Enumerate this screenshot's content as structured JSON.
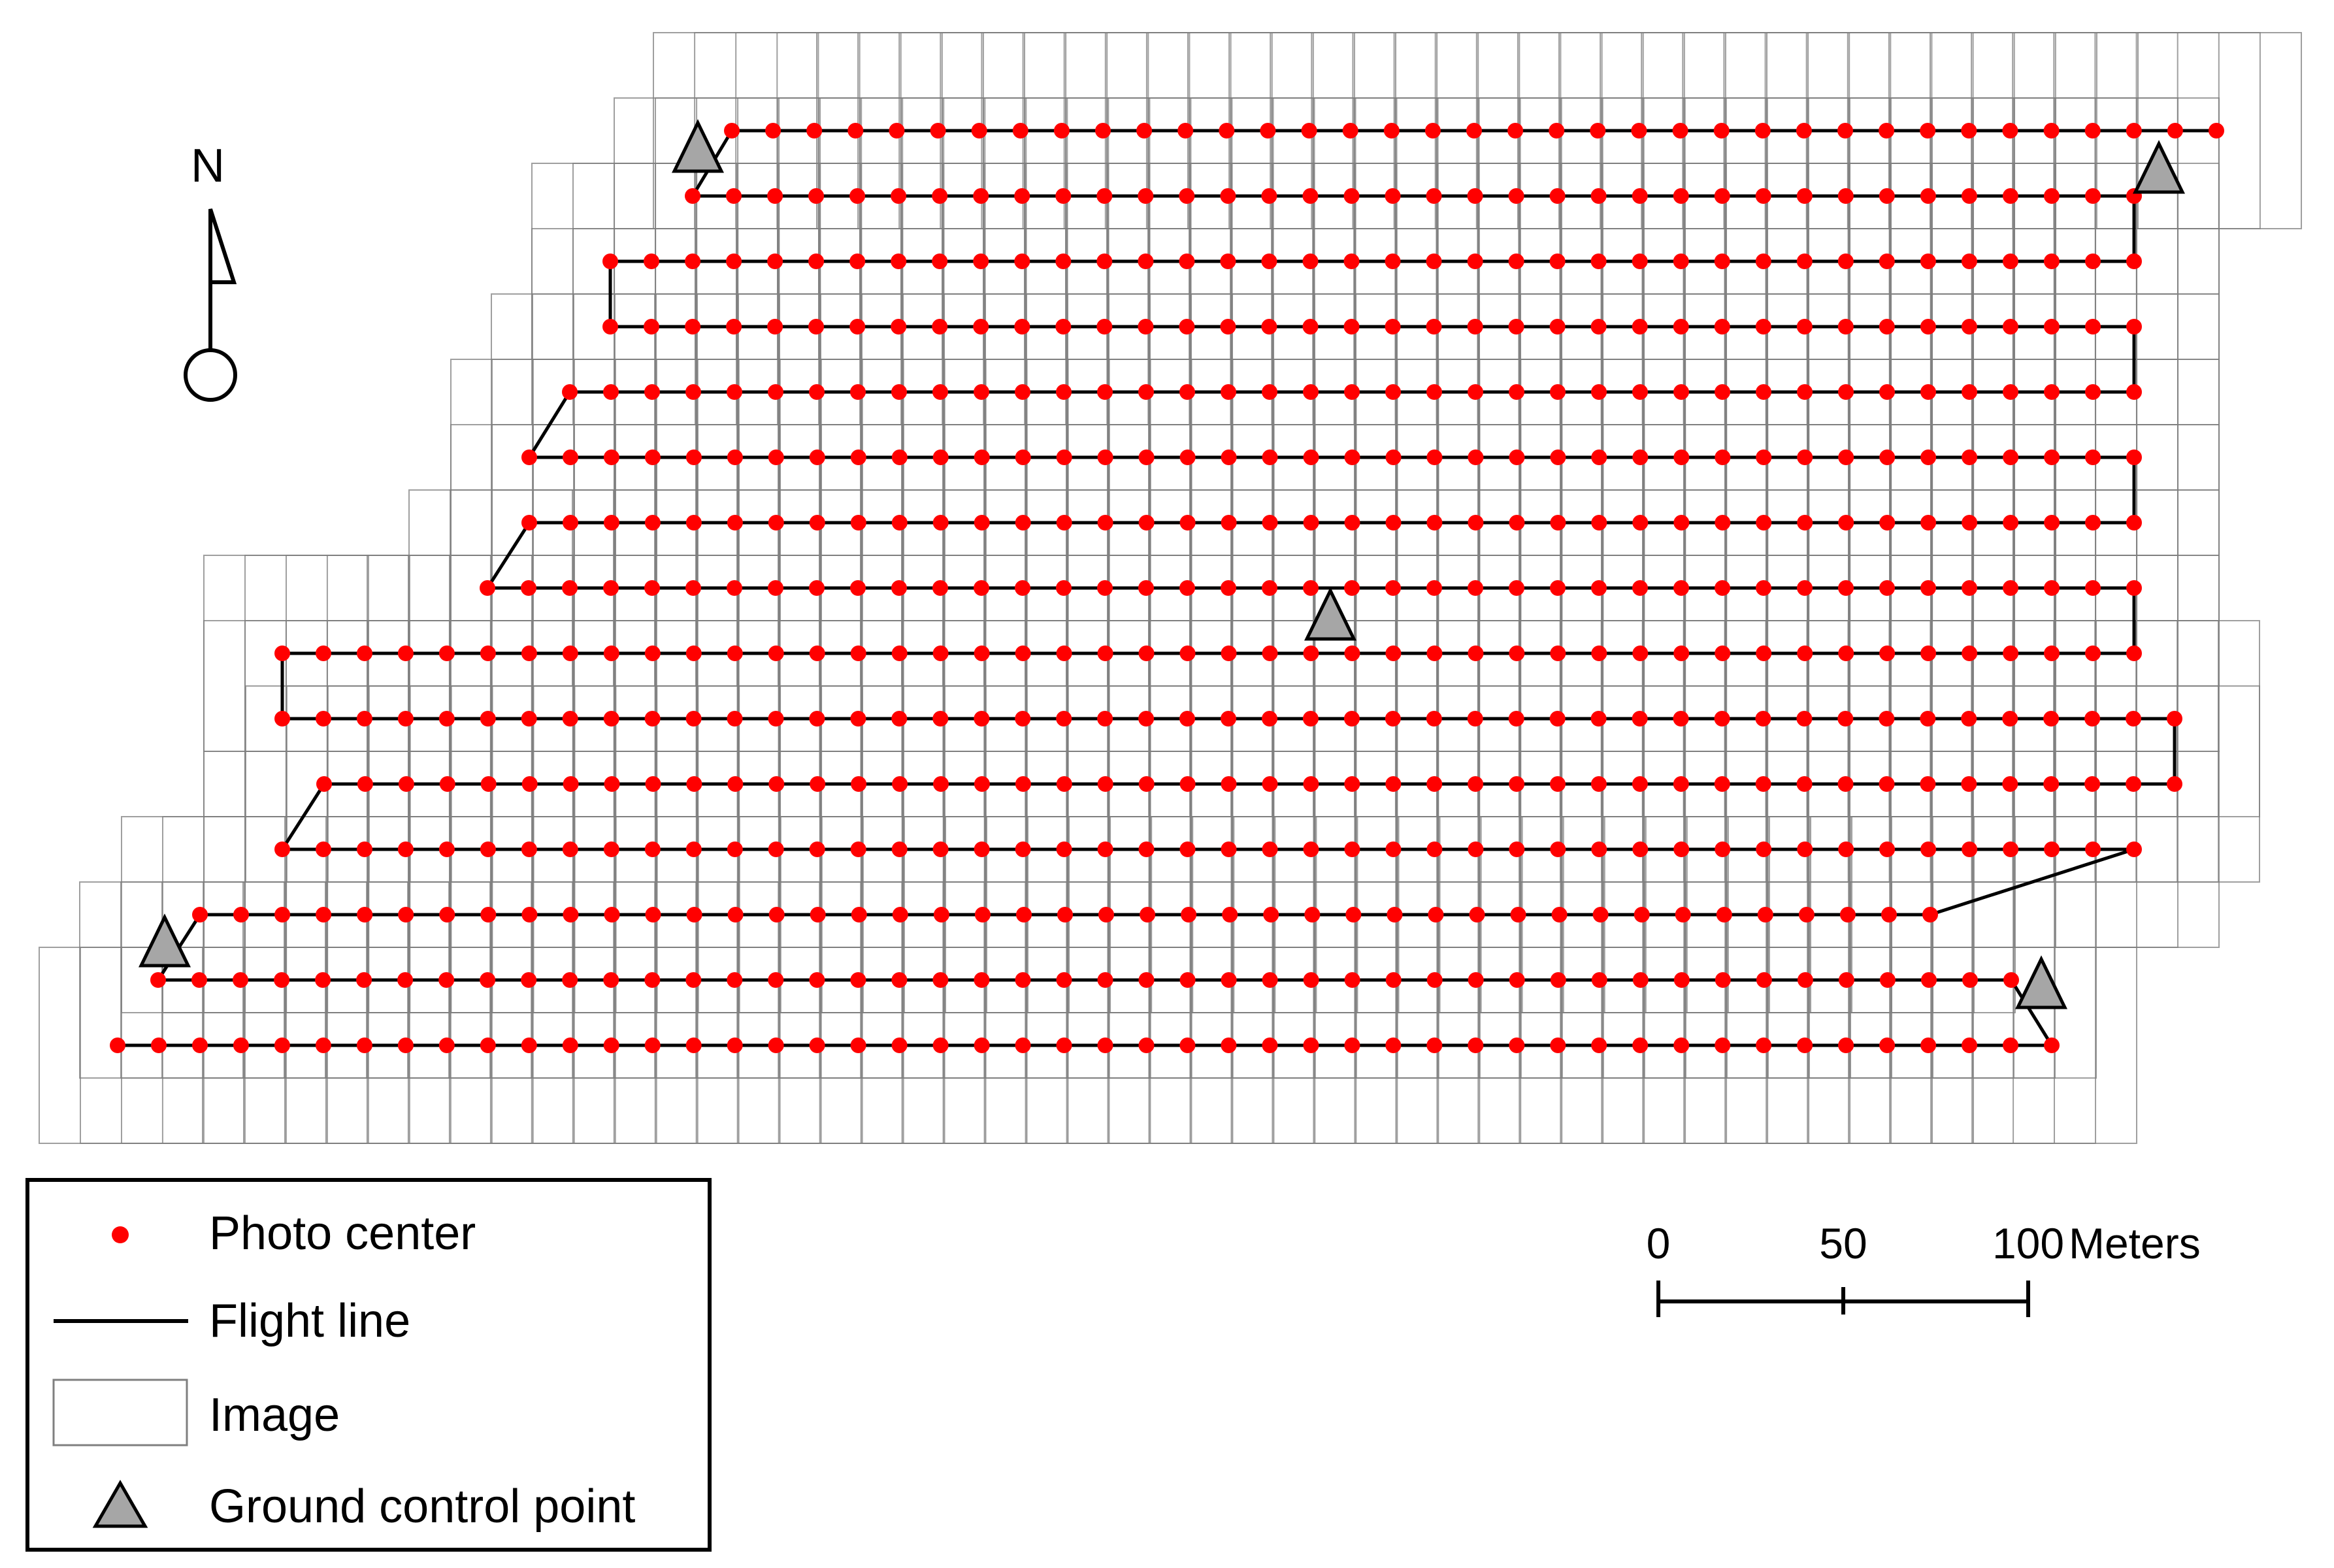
{
  "map": {
    "north_arrow_label": "N",
    "legend": {
      "photo_center": "Photo center",
      "flight_line": "Flight line",
      "image": "Image",
      "ground_control_point": "Ground control point"
    },
    "scale_bar": {
      "tick_labels": [
        "0",
        "50",
        "100"
      ],
      "unit": "Meters"
    },
    "colors": {
      "photo_center": "#ff0000",
      "flight_line": "#000000",
      "image_footprint": "#7f7f7f",
      "gcp_fill": "#a6a6a6",
      "gcp_outline": "#000000"
    }
  }
}
